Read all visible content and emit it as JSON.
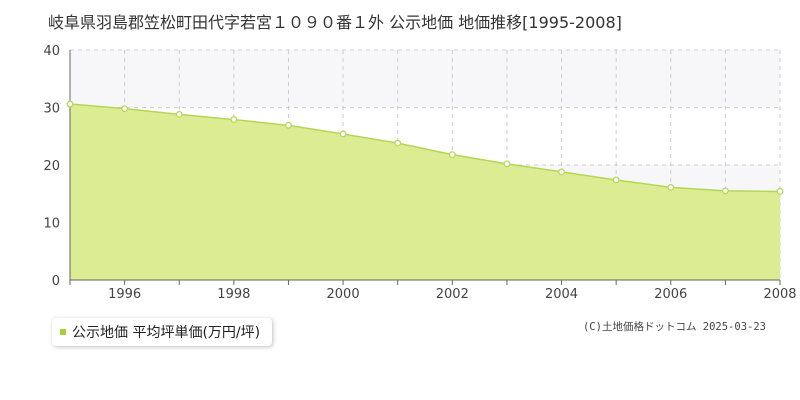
{
  "chart_data": {
    "type": "area",
    "title": "岐阜県羽島郡笠松町田代字若宮１０９０番１外 公示地価 地価推移[1995-2008]",
    "x": [
      1995,
      1996,
      1997,
      1998,
      1999,
      2000,
      2001,
      2002,
      2003,
      2004,
      2005,
      2006,
      2007,
      2008
    ],
    "series": [
      {
        "name": "公示地価 平均坪単価(万円/坪)",
        "values": [
          30.6,
          29.8,
          28.8,
          27.9,
          26.9,
          25.4,
          23.8,
          21.8,
          20.2,
          18.8,
          17.4,
          16.1,
          15.5,
          15.4
        ]
      }
    ],
    "xlim": [
      1995,
      2008
    ],
    "ylim": [
      0,
      40
    ],
    "yticks": [
      0,
      10,
      20,
      30,
      40
    ],
    "xticks": [
      1996,
      1998,
      2000,
      2002,
      2004,
      2006,
      2008
    ],
    "grid": true,
    "legend_position": "bottom-left",
    "colors": {
      "fill": "#dcec93",
      "line": "#b5d654",
      "marker_fill": "#ffffff",
      "grid": "#cccccc",
      "band": "#f7f7f9",
      "legend_swatch": "#a8cf39"
    }
  },
  "legend": {
    "label": "公示地価 平均坪単価(万円/坪)"
  },
  "credit": "(C)土地価格ドットコム 2025-03-23"
}
